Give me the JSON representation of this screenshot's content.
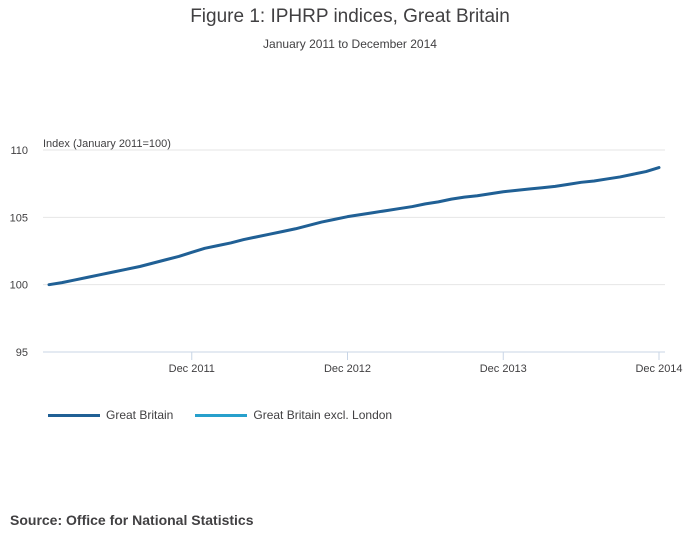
{
  "header": {
    "title": "Figure 1: IPHRP indices, Great Britain",
    "subtitle": "January 2011 to December 2014"
  },
  "source": "Source: Office for National Statistics",
  "colors": {
    "great_britain": "#206095",
    "great_britain_excl_london": "#27a0cc",
    "grid": "#e6e6e6",
    "axis": "#c8d5e6"
  },
  "chart_data": {
    "type": "line",
    "title": "Figure 1: IPHRP indices, Great Britain",
    "subtitle": "January 2011 to December 2014",
    "xlabel": "",
    "ylabel": "Index (January 2011=100)",
    "ylim": [
      95,
      110
    ],
    "yticks": [
      "95",
      "100",
      "105",
      "110"
    ],
    "xticks": [
      {
        "label": "Dec 2011",
        "index": 11
      },
      {
        "label": "Dec 2012",
        "index": 23
      },
      {
        "label": "Dec 2013",
        "index": 35
      },
      {
        "label": "Dec 2014",
        "index": 47
      }
    ],
    "grid": true,
    "legend": "bottom-left",
    "series": [
      {
        "name": "Great Britain",
        "values": [
          100.0,
          100.15,
          100.35,
          100.55,
          100.75,
          100.95,
          101.15,
          101.35,
          101.6,
          101.85,
          102.1,
          102.4,
          102.7,
          102.9,
          103.1,
          103.35,
          103.55,
          103.75,
          103.95,
          104.15,
          104.4,
          104.65,
          104.85,
          105.05,
          105.2,
          105.35,
          105.5,
          105.65,
          105.8,
          106.0,
          106.15,
          106.35,
          106.5,
          106.6,
          106.75,
          106.9,
          107.0,
          107.1,
          107.2,
          107.3,
          107.45,
          107.6,
          107.7,
          107.85,
          108.0,
          108.2,
          108.4,
          108.7
        ]
      },
      {
        "name": "Great Britain excl. London",
        "values": []
      }
    ]
  }
}
